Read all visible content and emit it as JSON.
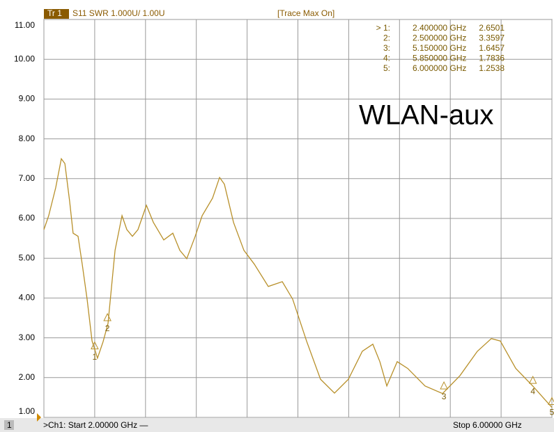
{
  "chart_data": {
    "type": "line",
    "trace_label": "Tr 1",
    "measurement": "S11 SWR 1.000U/ 1.00U",
    "status": "[Trace Max On]",
    "annotation": "WLAN-aux",
    "channel": "1",
    "start_label": ">Ch1: Start  2.00000 GHz —",
    "stop_label": "Stop  6.00000 GHz",
    "color": "#b8902a",
    "grid": true,
    "x": [
      2.0,
      2.038,
      2.093,
      2.137,
      2.165,
      2.203,
      2.23,
      2.269,
      2.302,
      2.34,
      2.379,
      2.422,
      2.466,
      2.505,
      2.56,
      2.615,
      2.653,
      2.697,
      2.741,
      2.807,
      2.862,
      2.944,
      3.015,
      3.07,
      3.125,
      3.191,
      3.246,
      3.328,
      3.383,
      3.421,
      3.493,
      3.575,
      3.657,
      3.767,
      3.877,
      3.959,
      4.068,
      4.178,
      4.288,
      4.398,
      4.507,
      4.59,
      4.645,
      4.7,
      4.782,
      4.864,
      5.001,
      5.139,
      5.276,
      5.413,
      5.523,
      5.594,
      5.715,
      5.852,
      6.0
    ],
    "values": [
      5.72,
      6.07,
      6.77,
      7.5,
      7.38,
      6.42,
      5.63,
      5.55,
      4.85,
      3.97,
      2.92,
      2.49,
      2.9,
      3.36,
      5.2,
      6.07,
      5.72,
      5.55,
      5.72,
      6.33,
      5.9,
      5.46,
      5.63,
      5.2,
      4.99,
      5.55,
      6.07,
      6.51,
      7.03,
      6.86,
      5.9,
      5.2,
      4.85,
      4.29,
      4.41,
      3.97,
      2.92,
      1.96,
      1.61,
      1.96,
      2.66,
      2.84,
      2.4,
      1.79,
      2.4,
      2.23,
      1.79,
      1.6,
      2.05,
      2.66,
      2.98,
      2.92,
      2.23,
      1.78,
      1.25
    ],
    "xlim": [
      2,
      6
    ],
    "xticks": [
      2.0,
      2.4,
      2.8,
      3.2,
      3.6,
      4.0,
      4.4,
      4.8,
      5.2,
      5.6,
      6.0
    ],
    "ylim": [
      1,
      11
    ],
    "yticks": [
      {
        "value": 1,
        "label": "1.00"
      },
      {
        "value": 2,
        "label": "2.00"
      },
      {
        "value": 3,
        "label": "3.00"
      },
      {
        "value": 4,
        "label": "4.00"
      },
      {
        "value": 5,
        "label": "5.00"
      },
      {
        "value": 6,
        "label": "6.00"
      },
      {
        "value": 7,
        "label": "7.00"
      },
      {
        "value": 8,
        "label": "8.00"
      },
      {
        "value": 9,
        "label": "9.00"
      },
      {
        "value": 10,
        "label": "10.00"
      },
      {
        "value": 11,
        "label": "11.00"
      }
    ],
    "markers": [
      {
        "name": "1",
        "table_label": "> 1:",
        "x": 2.4,
        "x_label": "2.400000 GHz",
        "value": 2.6501,
        "value_label": "2.6501"
      },
      {
        "name": "2",
        "table_label": "2:",
        "x": 2.5,
        "x_label": "2.500000 GHz",
        "value": 3.3597,
        "value_label": "3.3597"
      },
      {
        "name": "3",
        "table_label": "3:",
        "x": 5.15,
        "x_label": "5.150000 GHz",
        "value": 1.6457,
        "value_label": "1.6457"
      },
      {
        "name": "4",
        "table_label": "4:",
        "x": 5.85,
        "x_label": "5.850000 GHz",
        "value": 1.7836,
        "value_label": "1.7836"
      },
      {
        "name": "5",
        "table_label": "5:",
        "x": 6.0,
        "x_label": "6.000000 GHz",
        "value": 1.2538,
        "value_label": "1.2538"
      }
    ]
  }
}
